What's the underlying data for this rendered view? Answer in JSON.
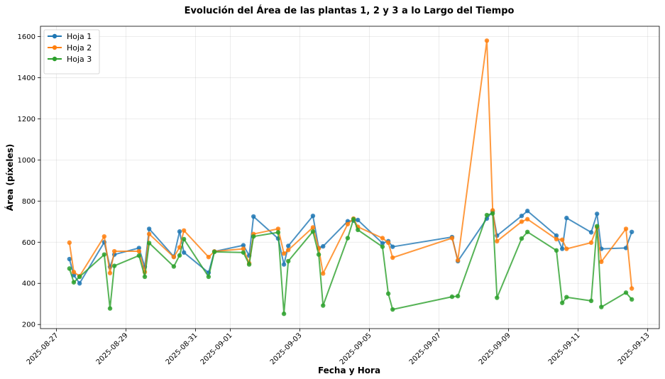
{
  "chart_data": {
    "type": "line",
    "title": "Evolución del Área de las plantas 1, 2 y 3 a lo Largo del Tiempo",
    "xlabel": "Fecha y Hora",
    "ylabel": "Área (píxeles)",
    "xlim": [
      "2025-08-26T13:00",
      "2025-09-13T08:00"
    ],
    "ylim": [
      180,
      1650
    ],
    "x_ticks": [
      "2025-08-27",
      "2025-08-29",
      "2025-08-31",
      "2025-09-01",
      "2025-09-03",
      "2025-09-05",
      "2025-09-07",
      "2025-09-09",
      "2025-09-11",
      "2025-09-13"
    ],
    "y_ticks": [
      200,
      400,
      600,
      800,
      1000,
      1200,
      1400,
      1600
    ],
    "grid": true,
    "legend_position": "top-left",
    "colors": {
      "Hoja 1": "#1f77b4",
      "Hoja 2": "#ff7f0e",
      "Hoja 3": "#2ca02c"
    },
    "x": [
      "2025-08-27T09:00",
      "2025-08-27T12:00",
      "2025-08-27T16:00",
      "2025-08-28T09:00",
      "2025-08-28T13:00",
      "2025-08-28T16:00",
      "2025-08-29T09:00",
      "2025-08-29T13:00",
      "2025-08-29T16:00",
      "2025-08-30T09:00",
      "2025-08-30T13:00",
      "2025-08-30T16:00",
      "2025-08-31T09:00",
      "2025-08-31T13:00",
      "2025-09-01T09:00",
      "2025-09-01T13:00",
      "2025-09-01T16:00",
      "2025-09-02T09:00",
      "2025-09-02T13:00",
      "2025-09-02T16:00",
      "2025-09-03T09:00",
      "2025-09-03T13:00",
      "2025-09-03T16:00",
      "2025-09-04T09:00",
      "2025-09-04T13:00",
      "2025-09-04T16:00",
      "2025-09-05T09:00",
      "2025-09-05T13:00",
      "2025-09-05T16:00",
      "2025-09-07T09:00",
      "2025-09-07T13:00",
      "2025-09-08T09:00",
      "2025-09-08T13:00",
      "2025-09-08T16:00",
      "2025-09-09T09:00",
      "2025-09-09T13:00",
      "2025-09-10T09:00",
      "2025-09-10T13:00",
      "2025-09-10T16:00",
      "2025-09-11T09:00",
      "2025-09-11T13:00",
      "2025-09-11T16:00",
      "2025-09-12T09:00",
      "2025-09-12T13:00"
    ],
    "series": [
      {
        "name": "Hoja 1",
        "values": [
          518,
          440,
          400,
          600,
          480,
          540,
          572,
          480,
          665,
          530,
          652,
          550,
          452,
          555,
          585,
          535,
          725,
          618,
          492,
          582,
          728,
          572,
          580,
          702,
          705,
          708,
          595,
          605,
          578,
          625,
          508,
          715,
          750,
          632,
          728,
          752,
          632,
          568,
          718,
          648,
          738,
          568,
          572,
          650
        ]
      },
      {
        "name": "Hoja 2",
        "values": [
          598,
          455,
          435,
          628,
          450,
          556,
          556,
          455,
          640,
          528,
          575,
          657,
          528,
          555,
          568,
          498,
          640,
          665,
          545,
          562,
          672,
          570,
          448,
          688,
          715,
          675,
          620,
          598,
          525,
          620,
          512,
          1580,
          755,
          605,
          700,
          712,
          615,
          612,
          568,
          598,
          672,
          505,
          665,
          375
        ]
      },
      {
        "name": "Hoja 3",
        "values": [
          472,
          405,
          432,
          540,
          278,
          485,
          535,
          432,
          596,
          482,
          536,
          615,
          432,
          553,
          550,
          492,
          628,
          648,
          252,
          508,
          652,
          540,
          292,
          620,
          712,
          660,
          578,
          350,
          273,
          335,
          338,
          732,
          740,
          330,
          618,
          650,
          560,
          305,
          333,
          315,
          678,
          285,
          355,
          322
        ]
      }
    ]
  }
}
